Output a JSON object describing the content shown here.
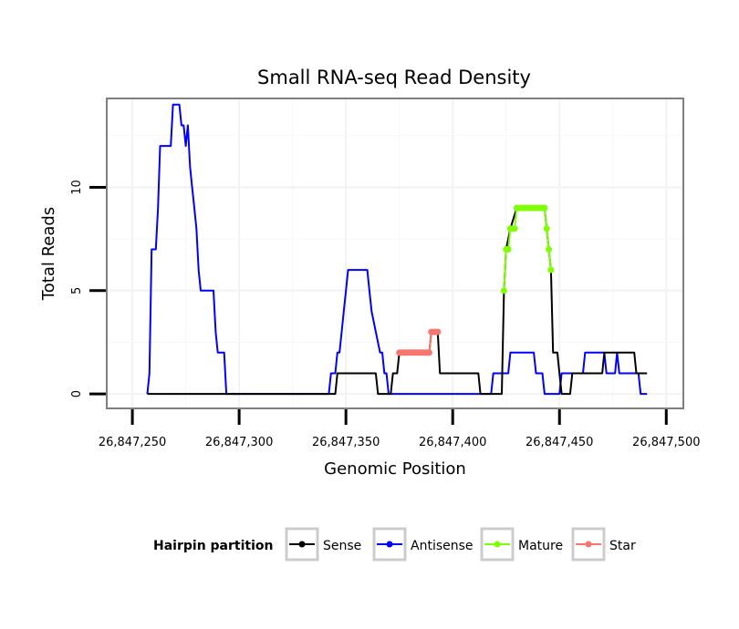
{
  "chart_data": {
    "type": "line",
    "title": "Small RNA-seq Read Density",
    "xlabel": "Genomic Position",
    "ylabel": "Total Reads",
    "xlim": [
      26847238,
      26847508
    ],
    "ylim": [
      -0.7,
      14.3
    ],
    "x_ticks": [
      26847250,
      26847300,
      26847350,
      26847400,
      26847450,
      26847500
    ],
    "x_tick_labels": [
      "26,847,250",
      "26,847,300",
      "26,847,350",
      "26,847,400",
      "26,847,450",
      "26,847,500"
    ],
    "y_ticks": [
      0,
      5,
      10
    ],
    "y_tick_labels": [
      "0",
      "5",
      "10"
    ],
    "grid": true,
    "legend": {
      "title": "Hairpin partition",
      "position": "bottom",
      "entries": [
        {
          "label": "Sense",
          "color": "#000000"
        },
        {
          "label": "Antisense",
          "color": "#0000ff"
        },
        {
          "label": "Mature",
          "color": "#7fff00"
        },
        {
          "label": "Star",
          "color": "#f8766d"
        }
      ]
    },
    "series": [
      {
        "name": "Antisense",
        "color": "#0000ff",
        "points": [
          [
            26847257,
            0
          ],
          [
            26847258,
            1
          ],
          [
            26847259,
            7
          ],
          [
            26847261,
            7
          ],
          [
            26847262,
            9
          ],
          [
            26847263,
            12
          ],
          [
            26847268,
            12
          ],
          [
            26847269,
            14
          ],
          [
            26847272,
            14
          ],
          [
            26847273,
            13
          ],
          [
            26847274,
            13
          ],
          [
            26847275,
            12
          ],
          [
            26847276,
            13
          ],
          [
            26847277,
            11
          ],
          [
            26847278,
            10
          ],
          [
            26847279,
            9
          ],
          [
            26847280,
            8
          ],
          [
            26847281,
            6
          ],
          [
            26847282,
            5
          ],
          [
            26847288,
            5
          ],
          [
            26847289,
            3
          ],
          [
            26847290,
            2
          ],
          [
            26847293,
            2
          ],
          [
            26847294,
            0
          ],
          [
            26847342,
            0
          ],
          [
            26847343,
            1
          ],
          [
            26847345,
            1
          ],
          [
            26847346,
            2
          ],
          [
            26847347,
            2
          ],
          [
            26847348,
            3
          ],
          [
            26847349,
            4
          ],
          [
            26847350,
            5
          ],
          [
            26847351,
            6
          ],
          [
            26847360,
            6
          ],
          [
            26847361,
            5
          ],
          [
            26847362,
            4
          ],
          [
            26847364,
            3
          ],
          [
            26847366,
            2
          ],
          [
            26847367,
            2
          ],
          [
            26847368,
            1
          ],
          [
            26847369,
            1
          ],
          [
            26847370,
            0
          ],
          [
            26847418,
            0
          ],
          [
            26847419,
            1
          ],
          [
            26847426,
            1
          ],
          [
            26847427,
            2
          ],
          [
            26847438,
            2
          ],
          [
            26847439,
            1
          ],
          [
            26847442,
            1
          ],
          [
            26847443,
            0
          ],
          [
            26847450,
            0
          ],
          [
            26847451,
            1
          ],
          [
            26847461,
            1
          ],
          [
            26847462,
            2
          ],
          [
            26847471,
            2
          ],
          [
            26847472,
            1
          ],
          [
            26847476,
            1
          ],
          [
            26847477,
            2
          ],
          [
            26847478,
            1
          ],
          [
            26847487,
            1
          ],
          [
            26847488,
            0
          ],
          [
            26847491,
            0
          ]
        ]
      },
      {
        "name": "Sense",
        "color": "#000000",
        "points": [
          [
            26847257,
            0
          ],
          [
            26847345,
            0
          ],
          [
            26847346,
            1
          ],
          [
            26847364,
            1
          ],
          [
            26847365,
            0
          ],
          [
            26847371,
            0
          ],
          [
            26847372,
            1
          ],
          [
            26847374,
            1
          ],
          [
            26847375,
            2
          ],
          [
            26847389,
            2
          ],
          [
            26847390,
            3
          ],
          [
            26847393,
            3
          ],
          [
            26847394,
            1
          ],
          [
            26847412,
            1
          ],
          [
            26847413,
            0
          ],
          [
            26847423,
            0
          ],
          [
            26847424,
            5
          ],
          [
            26847425,
            7
          ],
          [
            26847427,
            8
          ],
          [
            26847430,
            9
          ],
          [
            26847443,
            9
          ],
          [
            26847444,
            8
          ],
          [
            26847445,
            7
          ],
          [
            26847446,
            6
          ],
          [
            26847447,
            2
          ],
          [
            26847449,
            2
          ],
          [
            26847450,
            1
          ],
          [
            26847451,
            0
          ],
          [
            26847455,
            0
          ],
          [
            26847456,
            1
          ],
          [
            26847470,
            1
          ],
          [
            26847471,
            2
          ],
          [
            26847485,
            2
          ],
          [
            26847486,
            1
          ],
          [
            26847491,
            1
          ]
        ]
      },
      {
        "name": "Mature",
        "color": "#7fff00",
        "markers": true,
        "points": [
          [
            26847424,
            5
          ],
          [
            26847425,
            7
          ],
          [
            26847426,
            7
          ],
          [
            26847427,
            8
          ],
          [
            26847428,
            8
          ],
          [
            26847429,
            8
          ],
          [
            26847430,
            9
          ],
          [
            26847431,
            9
          ],
          [
            26847432,
            9
          ],
          [
            26847433,
            9
          ],
          [
            26847434,
            9
          ],
          [
            26847435,
            9
          ],
          [
            26847436,
            9
          ],
          [
            26847437,
            9
          ],
          [
            26847438,
            9
          ],
          [
            26847439,
            9
          ],
          [
            26847440,
            9
          ],
          [
            26847441,
            9
          ],
          [
            26847442,
            9
          ],
          [
            26847443,
            9
          ],
          [
            26847444,
            8
          ],
          [
            26847445,
            7
          ],
          [
            26847446,
            6
          ]
        ]
      },
      {
        "name": "Star",
        "color": "#f8766d",
        "markers": true,
        "points": [
          [
            26847375,
            2
          ],
          [
            26847376,
            2
          ],
          [
            26847377,
            2
          ],
          [
            26847378,
            2
          ],
          [
            26847379,
            2
          ],
          [
            26847380,
            2
          ],
          [
            26847381,
            2
          ],
          [
            26847382,
            2
          ],
          [
            26847383,
            2
          ],
          [
            26847384,
            2
          ],
          [
            26847385,
            2
          ],
          [
            26847386,
            2
          ],
          [
            26847387,
            2
          ],
          [
            26847388,
            2
          ],
          [
            26847389,
            2
          ],
          [
            26847390,
            3
          ],
          [
            26847391,
            3
          ],
          [
            26847392,
            3
          ],
          [
            26847393,
            3
          ]
        ]
      }
    ]
  }
}
